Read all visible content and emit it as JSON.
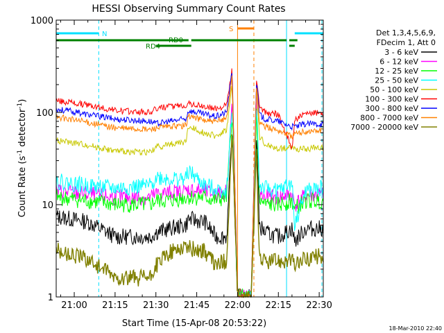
{
  "chart_data": {
    "type": "line",
    "title": "HESSI Observing Summary Count Rates",
    "xlabel": "Start Time (15-Apr-08 20:53:22)",
    "ylabel_main": "Count Rate (s",
    "ylabel_sup1": "-1",
    "ylabel_mid": " detector",
    "ylabel_sup2": "-1",
    "ylabel_end": ")",
    "yscale": "log",
    "ylim": [
      1,
      1000
    ],
    "xlim": [
      "20:53:22",
      "22:31:30"
    ],
    "x_ticks": [
      "21:00",
      "21:15",
      "21:30",
      "21:45",
      "22:00",
      "22:15",
      "22:30"
    ],
    "y_ticks": [
      "1",
      "10",
      "100",
      "1000"
    ],
    "legend_position": "right",
    "legend_header": [
      "Det 1,3,4,5,6,9,",
      "FDecim 1, Att 0"
    ],
    "x_sample_times": [
      "20:53",
      "21:05",
      "21:15",
      "21:28",
      "21:30",
      "21:35",
      "21:41",
      "21:42",
      "21:48",
      "21:52",
      "21:56",
      "21:58",
      "22:00",
      "22:05",
      "22:07",
      "22:08",
      "22:10",
      "22:15",
      "22:20",
      "22:21",
      "22:25",
      "22:31"
    ],
    "series": [
      {
        "name": "3 - 6 keV",
        "color": "#000000",
        "values": [
          7.5,
          6.5,
          4.5,
          4.5,
          5,
          5.5,
          6,
          7,
          6.5,
          4.5,
          4.5,
          60,
          1,
          1,
          60,
          6,
          5,
          4.5,
          5.5,
          4,
          5.5,
          5.5
        ]
      },
      {
        "name": "6 - 12 keV",
        "color": "#ff00ff",
        "values": [
          14,
          13,
          12,
          12,
          13,
          13.5,
          14,
          14.5,
          14,
          13,
          14,
          130,
          1,
          1,
          140,
          13,
          12,
          12,
          13,
          10,
          12.5,
          13
        ]
      },
      {
        "name": "12 - 25 keV",
        "color": "#00ff00",
        "values": [
          12,
          11,
          10,
          10,
          11,
          11,
          12,
          12,
          12,
          11,
          12,
          100,
          1,
          1,
          110,
          11,
          10,
          10,
          11,
          9,
          11,
          11
        ]
      },
      {
        "name": "25 - 50 keV",
        "color": "#00ffff",
        "values": [
          18,
          16,
          15,
          16,
          20,
          19,
          19,
          23,
          16,
          15,
          14,
          120,
          1,
          1,
          130,
          16,
          15,
          14,
          17,
          6,
          14,
          15
        ]
      },
      {
        "name": "50 - 100 keV",
        "color": "#c8c800",
        "values": [
          50,
          44,
          38,
          37,
          42,
          45,
          48,
          70,
          60,
          55,
          65,
          200,
          1,
          1,
          200,
          55,
          45,
          40,
          42,
          40,
          40,
          42
        ]
      },
      {
        "name": "100 - 300 keV",
        "color": "#ff0000",
        "values": [
          135,
          120,
          105,
          100,
          110,
          115,
          120,
          125,
          115,
          110,
          120,
          300,
          1,
          1,
          250,
          115,
          100,
          95,
          40,
          85,
          95,
          100
        ]
      },
      {
        "name": "300 - 800 keV",
        "color": "#0000ff",
        "values": [
          110,
          95,
          85,
          80,
          75,
          80,
          85,
          105,
          95,
          90,
          100,
          280,
          1,
          1,
          230,
          95,
          85,
          80,
          70,
          70,
          75,
          75
        ]
      },
      {
        "name": "800 - 7000 keV",
        "color": "#ff8000",
        "values": [
          90,
          78,
          68,
          65,
          68,
          70,
          72,
          92,
          82,
          78,
          88,
          250,
          1,
          1,
          200,
          80,
          70,
          64,
          55,
          58,
          62,
          64
        ]
      },
      {
        "name": "7000 - 20000 keV",
        "color": "#808000",
        "values": [
          3.2,
          2.6,
          1.6,
          1.6,
          2.2,
          3,
          3.6,
          3.4,
          3.1,
          2.2,
          2.5,
          60,
          1,
          1,
          35,
          2.8,
          2.4,
          2.5,
          2.5,
          2.2,
          2.6,
          2.8
        ]
      }
    ],
    "annotations": {
      "N_label": "N",
      "S_label": "S",
      "RD0_label": "RD0",
      "RD4_label": "RD4",
      "N_bars": [
        [
          "20:53:22",
          "21:09"
        ],
        [
          "22:21",
          "22:31:30"
        ]
      ],
      "S_bar": [
        "22:00",
        "22:06"
      ],
      "RD0_bars": [
        [
          "20:53:22",
          "21:42"
        ],
        [
          "21:43",
          "22:18"
        ],
        [
          "22:19",
          "22:22"
        ]
      ],
      "RD4_bars": [
        [
          "21:30",
          "21:43"
        ],
        [
          "22:19",
          "22:21"
        ]
      ],
      "cyan_solid_lines": [
        "20:53:22",
        "22:18"
      ],
      "cyan_dashed_lines": [
        "21:09",
        "22:31"
      ],
      "orange_solid_lines": [
        "22:00"
      ],
      "orange_dashed_lines": [
        "22:06"
      ]
    },
    "footer_timestamp": "18-Mar-2010 22:40"
  }
}
